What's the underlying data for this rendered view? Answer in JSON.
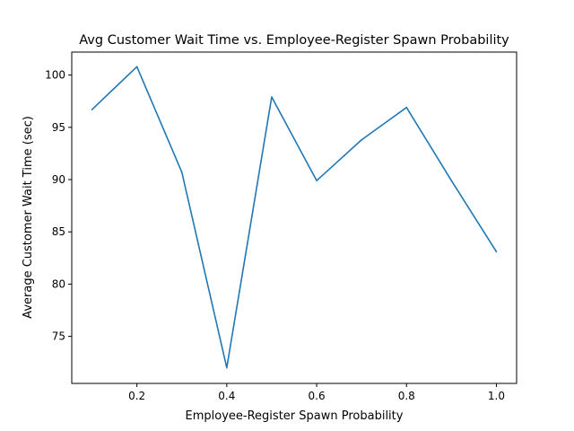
{
  "chart_data": {
    "type": "line",
    "title": "Avg Customer Wait Time vs. Employee-Register Spawn Probability",
    "xlabel": "Employee-Register Spawn Probability",
    "ylabel": "Average Customer Wait Time (sec)",
    "xlim": [
      0.055,
      1.045
    ],
    "ylim": [
      70.5,
      102.2
    ],
    "x_ticks": [
      "0.2",
      "0.4",
      "0.6",
      "0.8",
      "1.0"
    ],
    "y_ticks": [
      "75",
      "80",
      "85",
      "90",
      "95",
      "100"
    ],
    "grid": false,
    "series": [
      {
        "color": "#1f77b4",
        "x": [
          0.1,
          0.2,
          0.3,
          0.4,
          0.5,
          0.6,
          0.7,
          0.8,
          0.9,
          1.0
        ],
        "y": [
          96.7,
          100.8,
          90.7,
          72.0,
          97.9,
          89.9,
          93.8,
          96.9,
          89.9,
          83.1
        ]
      }
    ]
  }
}
